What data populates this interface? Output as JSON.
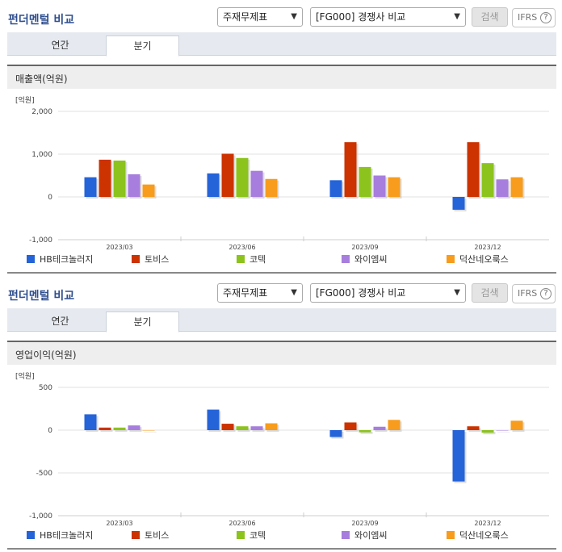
{
  "panels": [
    {
      "header": {
        "title": "펀더멘털 비교",
        "select_type": "주재무제표",
        "select_peer": "[FG000] 경쟁사 비교",
        "search_label": "검색",
        "ifrs_label": "IFRS",
        "help_glyph": "?"
      },
      "tabs": [
        "연간",
        "분기"
      ],
      "metric_title": "매출액(억원)",
      "chart_data": {
        "type": "bar",
        "unit_label": "[억원]",
        "categories": [
          "2023/03",
          "2023/06",
          "2023/09",
          "2023/12"
        ],
        "ylim": [
          -1000,
          2000
        ],
        "yticks": [
          2000,
          1000,
          0,
          -1000
        ],
        "ytick_labels": [
          "2,000",
          "1,000",
          "0",
          "-1,000"
        ],
        "grid": true,
        "legend_position": "bottom",
        "series": [
          {
            "name": "HB테크놀러지",
            "color": "#2563d9",
            "values": [
              460,
              550,
              390,
              -300
            ]
          },
          {
            "name": "토비스",
            "color": "#cc3300",
            "values": [
              870,
              1010,
              1280,
              1280
            ]
          },
          {
            "name": "코텍",
            "color": "#8cc31d",
            "values": [
              850,
              910,
              700,
              790
            ]
          },
          {
            "name": "와이엠씨",
            "color": "#a77edd",
            "values": [
              530,
              610,
              500,
              410
            ]
          },
          {
            "name": "덕산네오룩스",
            "color": "#f79c1c",
            "values": [
              290,
              420,
              460,
              460
            ]
          }
        ]
      }
    },
    {
      "header": {
        "title": "펀더멘털 비교",
        "select_type": "주재무제표",
        "select_peer": "[FG000] 경쟁사 비교",
        "search_label": "검색",
        "ifrs_label": "IFRS",
        "help_glyph": "?"
      },
      "tabs": [
        "연간",
        "분기"
      ],
      "metric_title": "영업이익(억원)",
      "chart_data": {
        "type": "bar",
        "unit_label": "[억원]",
        "categories": [
          "2023/03",
          "2023/06",
          "2023/09",
          "2023/12"
        ],
        "ylim": [
          -1000,
          500
        ],
        "yticks": [
          500,
          0,
          -500,
          -1000
        ],
        "ytick_labels": [
          "500",
          "0",
          "-500",
          "-1,000"
        ],
        "grid": true,
        "legend_position": "bottom",
        "series": [
          {
            "name": "HB테크놀러지",
            "color": "#2563d9",
            "values": [
              185,
              240,
              -80,
              -600
            ]
          },
          {
            "name": "토비스",
            "color": "#cc3300",
            "values": [
              30,
              75,
              90,
              45
            ]
          },
          {
            "name": "코텍",
            "color": "#8cc31d",
            "values": [
              30,
              45,
              -25,
              -30
            ]
          },
          {
            "name": "와이엠씨",
            "color": "#a77edd",
            "values": [
              55,
              45,
              40,
              0
            ]
          },
          {
            "name": "덕산네오룩스",
            "color": "#f79c1c",
            "values": [
              0,
              80,
              120,
              110
            ]
          }
        ]
      }
    }
  ]
}
